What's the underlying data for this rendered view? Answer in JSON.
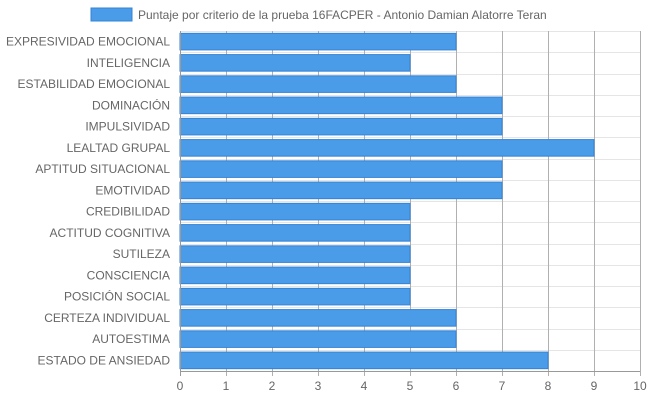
{
  "chart_data": {
    "type": "bar",
    "orientation": "horizontal",
    "legend": {
      "label": "Puntaje por criterio de la prueba 16FACPER - Antonio Damian Alatorre Teran",
      "position": "top"
    },
    "categories": [
      "EXPRESIVIDAD EMOCIONAL",
      "INTELIGENCIA",
      "ESTABILIDAD EMOCIONAL",
      "DOMINACIÓN",
      "IMPULSIVIDAD",
      "LEALTAD GRUPAL",
      "APTITUD SITUACIONAL",
      "EMOTIVIDAD",
      "CREDIBILIDAD",
      "ACTITUD COGNITIVA",
      "SUTILEZA",
      "CONSCIENCIA",
      "POSICIÓN SOCIAL",
      "CERTEZA INDIVIDUAL",
      "AUTOESTIMA",
      "ESTADO DE ANSIEDAD"
    ],
    "series": [
      {
        "name": "Puntaje por criterio de la prueba 16FACPER - Antonio Damian Alatorre Teran",
        "values": [
          6,
          5,
          6,
          7,
          7,
          9,
          7,
          7,
          5,
          5,
          5,
          5,
          5,
          6,
          6,
          8
        ]
      }
    ],
    "xlim": [
      0,
      10
    ],
    "x_ticks": [
      "0",
      "1",
      "2",
      "3",
      "4",
      "5",
      "6",
      "7",
      "8",
      "9",
      "10"
    ],
    "grid": true,
    "colors": {
      "bar_fill": "#4a9be8",
      "bar_stroke": "#3583d6",
      "grid": "#e5e5e5",
      "axis": "#999999",
      "text": "#666666"
    }
  }
}
